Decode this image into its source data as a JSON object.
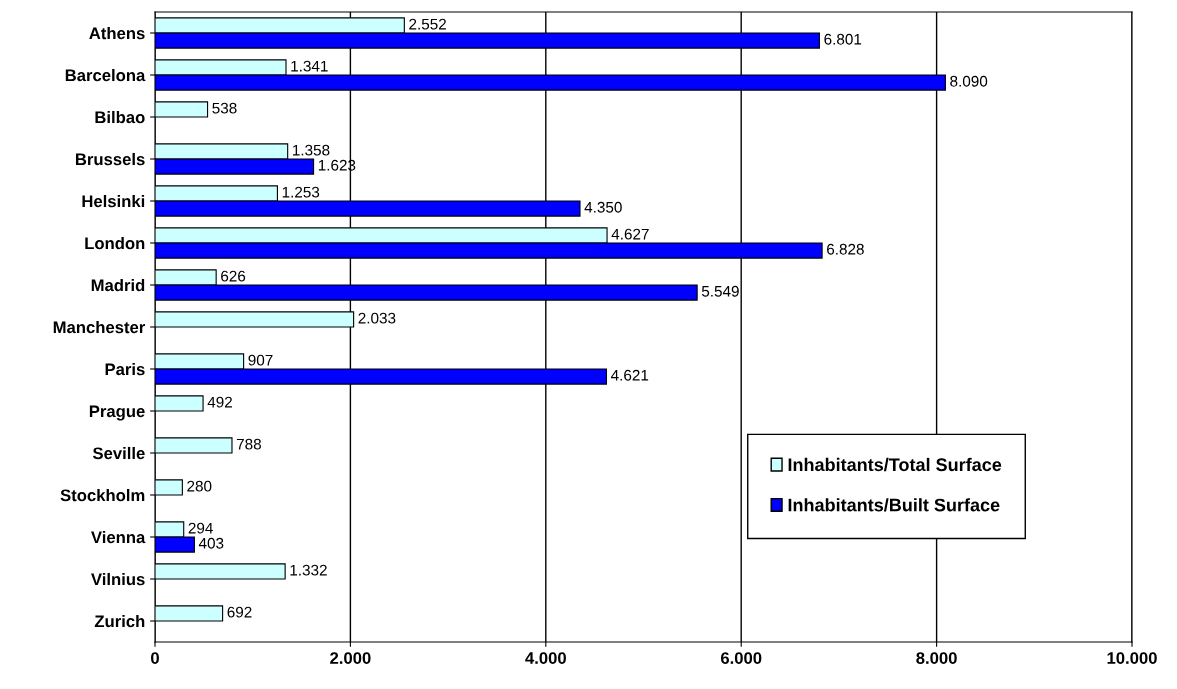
{
  "chart_data": {
    "type": "bar",
    "orientation": "horizontal",
    "categories": [
      "Athens",
      "Barcelona",
      "Bilbao",
      "Brussels",
      "Helsinki",
      "London",
      "Madrid",
      "Manchester",
      "Paris",
      "Prague",
      "Seville",
      "Stockholm",
      "Vienna",
      "Vilnius",
      "Zurich"
    ],
    "series": [
      {
        "name": "Inhabitants/Total Surface",
        "color": "#ccffff",
        "values": [
          2552,
          1341,
          538,
          1358,
          1253,
          4627,
          626,
          2033,
          907,
          492,
          788,
          280,
          294,
          1332,
          692
        ],
        "value_labels": [
          "2.552",
          "1.341",
          "538",
          "1.358",
          "1.253",
          "4.627",
          "626",
          "2.033",
          "907",
          "492",
          "788",
          "280",
          "294",
          "1.332",
          "692"
        ]
      },
      {
        "name": "Inhabitants/Built Surface",
        "color": "#0000ff",
        "values": [
          6801,
          8090,
          null,
          1623,
          4350,
          6828,
          5549,
          null,
          4621,
          null,
          null,
          null,
          403,
          null,
          null
        ],
        "value_labels": [
          "6.801",
          "8.090",
          null,
          "1.623",
          "4.350",
          "6.828",
          "5.549",
          null,
          "4.621",
          null,
          null,
          null,
          "403",
          null,
          null
        ]
      }
    ],
    "xlim": [
      0,
      10000
    ],
    "xticks": [
      {
        "value": 0,
        "label": "0"
      },
      {
        "value": 2000,
        "label": "2.000"
      },
      {
        "value": 4000,
        "label": "4.000"
      },
      {
        "value": 6000,
        "label": "6.000"
      },
      {
        "value": 8000,
        "label": "8.000"
      },
      {
        "value": 10000,
        "label": "10.000"
      }
    ],
    "grid": "x",
    "legend": "lower right"
  }
}
